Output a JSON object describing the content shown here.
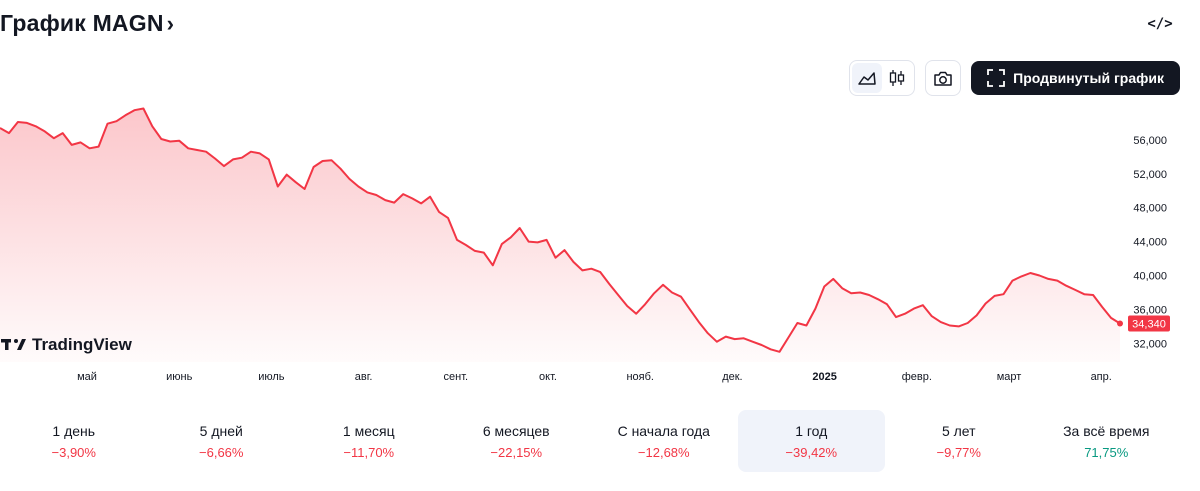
{
  "header": {
    "title": "График MAGN",
    "chevron": "›",
    "embed_icon": "code-icon"
  },
  "toolbar": {
    "chart_types": [
      {
        "name": "area-chart-icon",
        "active": true
      },
      {
        "name": "candles-icon",
        "active": false
      }
    ],
    "screenshot_icon": "camera-icon",
    "advanced_label": "Продвинутый график",
    "advanced_icon": "fullscreen-icon"
  },
  "logo_text": "TradingView",
  "chart_data": {
    "type": "area",
    "title": "",
    "xlabel": "",
    "ylabel": "",
    "x_tick_labels": [
      "май",
      "июнь",
      "июль",
      "авг.",
      "сент.",
      "окт.",
      "нояб.",
      "дек.",
      "2025",
      "февр.",
      "март",
      "апр."
    ],
    "y_tick_labels": [
      "56,000",
      "52,000",
      "48,000",
      "44,000",
      "40,000",
      "36,000",
      "32,000"
    ],
    "y_ticks": [
      56,
      52,
      48,
      44,
      40,
      36,
      32
    ],
    "ylim": [
      29.8,
      60.7
    ],
    "last_value": 34.34,
    "last_value_label": "34,340",
    "line_color": "#f23645",
    "series": [
      {
        "name": "",
        "values": [
          57.4,
          56.8,
          58.1,
          58.0,
          57.6,
          57.0,
          56.2,
          56.8,
          55.4,
          55.7,
          55.0,
          55.2,
          57.9,
          58.2,
          58.9,
          59.5,
          59.7,
          57.6,
          56.1,
          55.8,
          55.9,
          55.0,
          54.8,
          54.6,
          53.8,
          52.9,
          53.7,
          53.9,
          54.6,
          54.4,
          53.7,
          50.5,
          51.9,
          51.0,
          50.2,
          52.8,
          53.5,
          53.6,
          52.6,
          51.4,
          50.5,
          49.8,
          49.5,
          48.9,
          48.6,
          49.6,
          49.1,
          48.5,
          49.3,
          47.5,
          46.8,
          44.2,
          43.6,
          42.9,
          42.7,
          41.2,
          43.7,
          44.5,
          45.6,
          44.0,
          43.9,
          44.2,
          42.1,
          43.0,
          41.6,
          40.6,
          40.8,
          40.4,
          39.0,
          37.7,
          36.4,
          35.5,
          36.6,
          37.9,
          38.9,
          38.0,
          37.5,
          36.0,
          34.5,
          33.2,
          32.2,
          32.8,
          32.5,
          32.6,
          32.2,
          31.8,
          31.3,
          31.0,
          32.7,
          34.4,
          34.1,
          36.1,
          38.7,
          39.6,
          38.5,
          37.9,
          38.0,
          37.7,
          37.2,
          36.6,
          35.1,
          35.5,
          36.1,
          36.5,
          35.2,
          34.5,
          34.1,
          34.0,
          34.4,
          35.3,
          36.7,
          37.6,
          37.8,
          39.4,
          39.9,
          40.3,
          40.0,
          39.6,
          39.4,
          38.8,
          38.3,
          37.8,
          37.7,
          36.3,
          35.0,
          34.34
        ]
      }
    ]
  },
  "periods": [
    {
      "label": "1 день",
      "change": "−3,90%",
      "sign": "neg",
      "active": false
    },
    {
      "label": "5 дней",
      "change": "−6,66%",
      "sign": "neg",
      "active": false
    },
    {
      "label": "1 месяц",
      "change": "−11,70%",
      "sign": "neg",
      "active": false
    },
    {
      "label": "6 месяцев",
      "change": "−22,15%",
      "sign": "neg",
      "active": false
    },
    {
      "label": "С начала года",
      "change": "−12,68%",
      "sign": "neg",
      "active": false
    },
    {
      "label": "1 год",
      "change": "−39,42%",
      "sign": "neg",
      "active": true
    },
    {
      "label": "5 лет",
      "change": "−9,77%",
      "sign": "neg",
      "active": false
    },
    {
      "label": "За всё время",
      "change": "71,75%",
      "sign": "pos",
      "active": false
    }
  ]
}
